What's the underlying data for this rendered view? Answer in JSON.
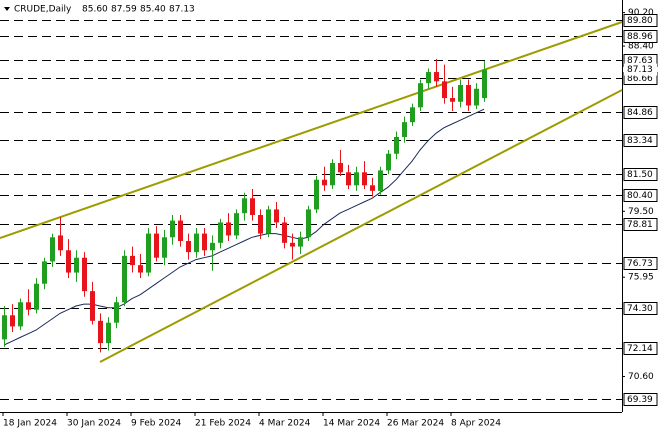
{
  "chart_data": {
    "type": "candlestick",
    "header": {
      "symbol": "CRUDE,Daily",
      "values": [
        "85.60",
        "87.59",
        "85.40",
        "87.13"
      ]
    },
    "last_price": {
      "value": 87.13,
      "label": "87.13"
    },
    "categories": [
      "18 Jan 2024",
      null,
      null,
      null,
      null,
      null,
      null,
      null,
      "30 Jan 2024",
      null,
      null,
      null,
      null,
      null,
      null,
      null,
      "9 Feb 2024",
      null,
      null,
      null,
      null,
      null,
      null,
      null,
      "21 Feb 2024",
      null,
      null,
      null,
      null,
      null,
      null,
      null,
      "4 Mar 2024",
      null,
      null,
      null,
      null,
      null,
      null,
      null,
      "14 Mar 2024",
      null,
      null,
      null,
      null,
      null,
      null,
      null,
      "26 Mar 2024",
      null,
      null,
      null,
      null,
      null,
      null,
      null,
      "8 Apr 2024",
      null,
      null,
      null,
      null
    ],
    "ohlc": [
      [
        72.6,
        74.4,
        72.2,
        73.9
      ],
      [
        73.9,
        74.5,
        73.0,
        73.3
      ],
      [
        73.3,
        74.8,
        73.1,
        74.6
      ],
      [
        74.6,
        75.3,
        73.9,
        74.2
      ],
      [
        74.2,
        75.9,
        74.0,
        75.6
      ],
      [
        75.6,
        77.0,
        75.3,
        76.8
      ],
      [
        76.8,
        78.3,
        76.5,
        78.1
      ],
      [
        78.2,
        79.2,
        77.1,
        77.4
      ],
      [
        77.4,
        78.0,
        75.9,
        76.2
      ],
      [
        76.2,
        77.4,
        75.7,
        77.0
      ],
      [
        77.0,
        77.3,
        74.9,
        75.2
      ],
      [
        75.2,
        75.7,
        73.4,
        73.6
      ],
      [
        73.6,
        74.0,
        71.9,
        72.4
      ],
      [
        72.4,
        73.8,
        72.0,
        73.5
      ],
      [
        73.5,
        74.9,
        73.2,
        74.6
      ],
      [
        74.6,
        77.4,
        74.4,
        77.1
      ],
      [
        77.1,
        77.6,
        76.2,
        76.6
      ],
      [
        76.6,
        77.2,
        75.9,
        76.2
      ],
      [
        76.2,
        78.6,
        76.0,
        78.3
      ],
      [
        78.3,
        78.7,
        76.8,
        77.0
      ],
      [
        77.0,
        78.5,
        76.6,
        78.1
      ],
      [
        78.1,
        79.3,
        77.7,
        79.0
      ],
      [
        79.0,
        79.3,
        77.6,
        77.9
      ],
      [
        77.9,
        78.3,
        76.9,
        77.3
      ],
      [
        77.3,
        78.6,
        77.0,
        78.3
      ],
      [
        78.3,
        78.6,
        77.1,
        77.4
      ],
      [
        77.4,
        78.2,
        76.3,
        77.8
      ],
      [
        77.8,
        79.1,
        77.5,
        78.9
      ],
      [
        78.9,
        79.4,
        77.9,
        78.2
      ],
      [
        78.2,
        79.6,
        78.0,
        79.4
      ],
      [
        79.4,
        80.5,
        79.0,
        80.2
      ],
      [
        80.2,
        80.7,
        79.0,
        79.3
      ],
      [
        79.3,
        79.6,
        78.0,
        78.3
      ],
      [
        78.3,
        79.8,
        78.1,
        79.6
      ],
      [
        79.6,
        80.0,
        78.6,
        78.9
      ],
      [
        78.9,
        79.2,
        77.5,
        77.8
      ],
      [
        77.8,
        78.3,
        76.9,
        77.6
      ],
      [
        77.6,
        78.4,
        77.2,
        78.1
      ],
      [
        78.1,
        79.8,
        77.9,
        79.6
      ],
      [
        79.6,
        81.4,
        79.4,
        81.2
      ],
      [
        81.2,
        81.9,
        80.6,
        80.9
      ],
      [
        80.9,
        82.3,
        80.7,
        82.1
      ],
      [
        82.1,
        82.8,
        81.4,
        81.6
      ],
      [
        81.6,
        82.0,
        80.7,
        80.9
      ],
      [
        80.9,
        81.9,
        80.6,
        81.6
      ],
      [
        81.6,
        82.2,
        80.7,
        80.9
      ],
      [
        80.9,
        81.3,
        80.3,
        80.6
      ],
      [
        80.6,
        81.9,
        80.4,
        81.7
      ],
      [
        81.7,
        82.8,
        81.5,
        82.6
      ],
      [
        82.6,
        83.8,
        82.3,
        83.5
      ],
      [
        83.5,
        84.6,
        83.2,
        84.3
      ],
      [
        84.3,
        85.3,
        84.1,
        85.1
      ],
      [
        85.1,
        86.6,
        84.9,
        86.4
      ],
      [
        86.4,
        87.2,
        86.1,
        87.0
      ],
      [
        87.0,
        87.7,
        86.2,
        86.5
      ],
      [
        86.5,
        87.4,
        85.3,
        85.6
      ],
      [
        85.6,
        86.2,
        84.9,
        85.4
      ],
      [
        85.4,
        86.6,
        85.1,
        86.3
      ],
      [
        86.3,
        86.6,
        84.9,
        85.2
      ],
      [
        85.2,
        86.4,
        85.0,
        86.1
      ],
      [
        85.6,
        87.59,
        85.4,
        87.13
      ]
    ],
    "ma_values": [
      72.3,
      72.5,
      72.7,
      72.9,
      73.1,
      73.4,
      73.7,
      74.0,
      74.2,
      74.4,
      74.5,
      74.5,
      74.4,
      74.3,
      74.3,
      74.5,
      74.8,
      75.0,
      75.3,
      75.6,
      75.9,
      76.2,
      76.5,
      76.7,
      76.9,
      77.0,
      77.1,
      77.3,
      77.5,
      77.7,
      77.9,
      78.1,
      78.2,
      78.3,
      78.3,
      78.2,
      78.1,
      78.0,
      78.1,
      78.4,
      78.8,
      79.1,
      79.4,
      79.6,
      79.8,
      80.0,
      80.2,
      80.5,
      80.8,
      81.2,
      81.7,
      82.2,
      82.8,
      83.3,
      83.7,
      84.0,
      84.2,
      84.4,
      84.6,
      84.8,
      85.0
    ],
    "up_color": "#1f9e1f",
    "down_color": "#e8141c",
    "ma_color": "#1c2a5a",
    "ylim": [
      68.69,
      90.88
    ],
    "yticks": [
      {
        "value": 90.2,
        "label": "90.20"
      },
      {
        "value": 88.4,
        "label": "88.40"
      },
      {
        "value": 79.5,
        "label": "79.50"
      },
      {
        "value": 75.95,
        "label": "75.95"
      },
      {
        "value": 70.6,
        "label": "70.60"
      }
    ],
    "levels": [
      {
        "value": 89.8,
        "label": "89.80"
      },
      {
        "value": 88.96,
        "label": "88.96"
      },
      {
        "value": 87.63,
        "label": "87.63"
      },
      {
        "value": 86.66,
        "label": "86.66"
      },
      {
        "value": 84.86,
        "label": "84.86"
      },
      {
        "value": 83.34,
        "label": "83.34"
      },
      {
        "value": 81.5,
        "label": "81.50"
      },
      {
        "value": 80.4,
        "label": "80.40"
      },
      {
        "value": 78.81,
        "label": "78.81"
      },
      {
        "value": 76.73,
        "label": "76.73"
      },
      {
        "value": 74.3,
        "label": "74.30"
      },
      {
        "value": 72.14,
        "label": "72.14"
      },
      {
        "value": 69.39,
        "label": "69.39"
      }
    ]
  }
}
